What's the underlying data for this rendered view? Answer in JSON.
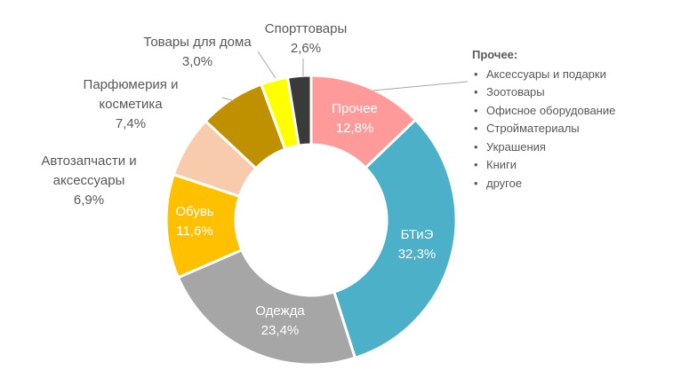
{
  "chart_data": {
    "type": "pie",
    "donut": true,
    "slices": [
      {
        "name": "Прочее",
        "value": 12.8,
        "label_value": "12,8%",
        "color": "#FF9A9A",
        "label_placement": "inside",
        "label_color": "#ffffff"
      },
      {
        "name": "БТиЭ",
        "value": 32.3,
        "label_value": "32,3%",
        "color": "#4BB0C8",
        "label_placement": "inside",
        "label_color": "#ffffff"
      },
      {
        "name": "Одежда",
        "value": 23.4,
        "label_value": "23,4%",
        "color": "#A6A6A6",
        "label_placement": "inside",
        "label_color": "#ffffff"
      },
      {
        "name": "Обувь",
        "value": 11.6,
        "label_value": "11,6%",
        "color": "#FFC000",
        "label_placement": "inside",
        "label_color": "#ffffff"
      },
      {
        "name": "Автозапчасти и аксессуары",
        "value": 6.9,
        "label_value": "6,9%",
        "color": "#F8CBAD",
        "label_placement": "outside",
        "label_lines": [
          "Автозапчасти и",
          "аксессуары",
          "6,9%"
        ]
      },
      {
        "name": "Парфюмерия и косметика",
        "value": 7.4,
        "label_value": "7,4%",
        "color": "#BF9000",
        "label_placement": "outside",
        "label_lines": [
          "Парфюмерия и",
          "косметика",
          "7,4%"
        ]
      },
      {
        "name": "Товары для дома",
        "value": 3.0,
        "label_value": "3,0%",
        "color": "#FFFF00",
        "label_placement": "outside",
        "label_lines": [
          "Товары для дома",
          "3,0%"
        ]
      },
      {
        "name": "Спорттовары",
        "value": 2.6,
        "label_value": "2,6%",
        "color": "#3A3A3A",
        "label_placement": "outside",
        "label_lines": [
          "Спорттовары",
          "2,6%"
        ]
      }
    ],
    "legend": {
      "title": "Прочее:",
      "items": [
        "Аксессуары и подарки",
        "Зоотовары",
        "Офисное оборудование",
        "Стройматериалы",
        "Украшения",
        "Книги",
        "другое"
      ],
      "placement": "right"
    }
  }
}
